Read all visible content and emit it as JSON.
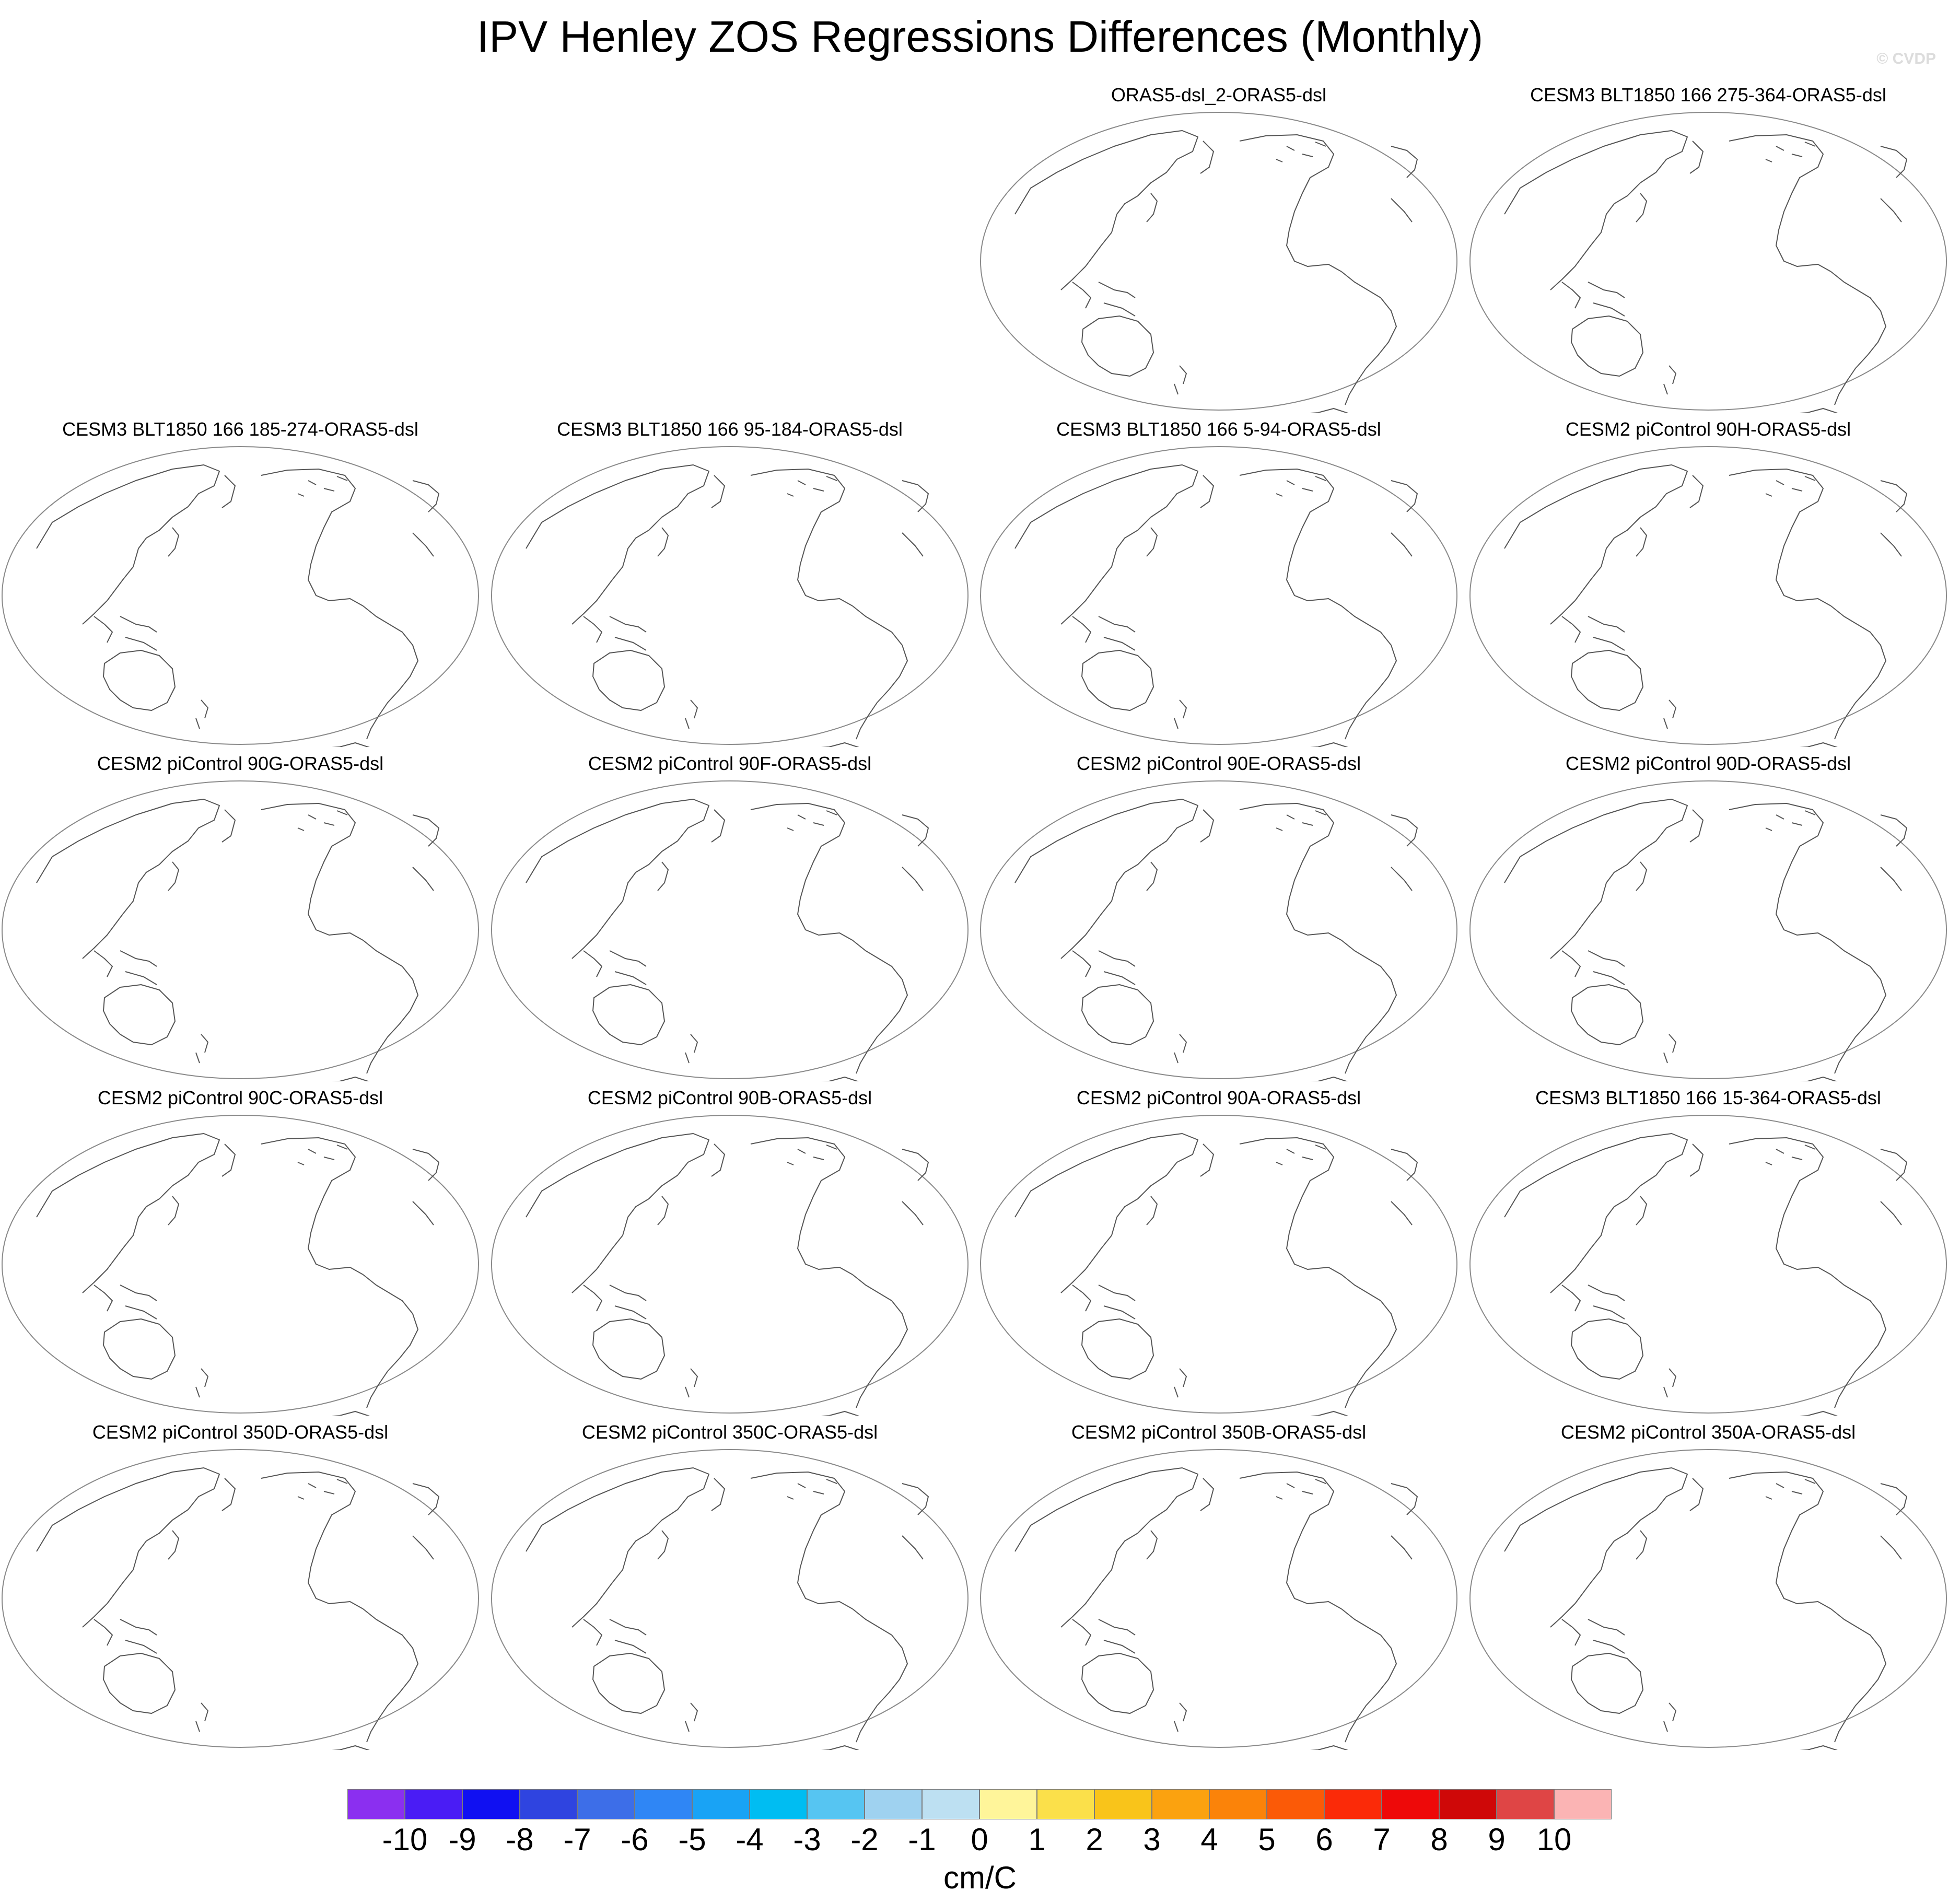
{
  "title": "IPV Henley ZOS Regressions Differences (Monthly)",
  "watermark": "© CVDP",
  "panels": [
    {
      "label": "ORAS5-dsl_2-ORAS5-dsl"
    },
    {
      "label": "CESM3 BLT1850 166 275-364-ORAS5-dsl"
    },
    {
      "label": "CESM3 BLT1850 166 185-274-ORAS5-dsl"
    },
    {
      "label": "CESM3 BLT1850 166 95-184-ORAS5-dsl"
    },
    {
      "label": "CESM3 BLT1850 166 5-94-ORAS5-dsl"
    },
    {
      "label": "CESM2 piControl 90H-ORAS5-dsl"
    },
    {
      "label": "CESM2 piControl 90G-ORAS5-dsl"
    },
    {
      "label": "CESM2 piControl 90F-ORAS5-dsl"
    },
    {
      "label": "CESM2 piControl 90E-ORAS5-dsl"
    },
    {
      "label": "CESM2 piControl 90D-ORAS5-dsl"
    },
    {
      "label": "CESM2 piControl 90C-ORAS5-dsl"
    },
    {
      "label": "CESM2 piControl 90B-ORAS5-dsl"
    },
    {
      "label": "CESM2 piControl 90A-ORAS5-dsl"
    },
    {
      "label": "CESM3 BLT1850 166 15-364-ORAS5-dsl"
    },
    {
      "label": "CESM2 piControl 350D-ORAS5-dsl"
    },
    {
      "label": "CESM2 piControl 350C-ORAS5-dsl"
    },
    {
      "label": "CESM2 piControl 350B-ORAS5-dsl"
    },
    {
      "label": "CESM2 piControl 350A-ORAS5-dsl"
    }
  ],
  "colorbar": {
    "units": "cm/C",
    "colors": [
      "#8b2ff0",
      "#4a1cf5",
      "#1010f2",
      "#2f44e0",
      "#3d6ee8",
      "#2f86f5",
      "#19a3f5",
      "#00bdf2",
      "#56c5f2",
      "#9fd2f0",
      "#bde0f2",
      "#fff59a",
      "#fbe04a",
      "#f9c41a",
      "#fba20f",
      "#fb8309",
      "#fb5a07",
      "#fb2a08",
      "#ee0909",
      "#cf0808",
      "#df4545",
      "#fbb4b4"
    ],
    "labels": [
      "-10",
      "-9",
      "-8",
      "-7",
      "-6",
      "-5",
      "-4",
      "-3",
      "-2",
      "-1",
      "0",
      "1",
      "2",
      "3",
      "4",
      "5",
      "6",
      "7",
      "8",
      "9",
      "10"
    ]
  }
}
